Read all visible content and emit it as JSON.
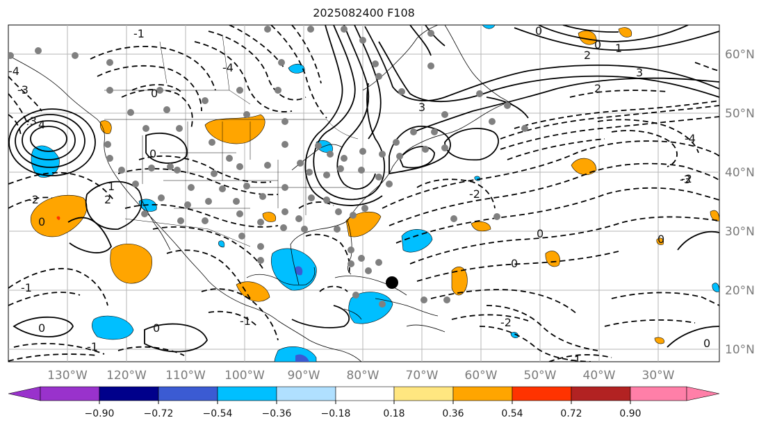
{
  "title": "2025082400 F108",
  "map": {
    "lon_labels": [
      "130°W",
      "120°W",
      "110°W",
      "100°W",
      "90°W",
      "80°W",
      "70°W",
      "60°W",
      "50°W",
      "40°W",
      "30°W"
    ],
    "lat_labels": [
      "60°N",
      "50°N",
      "40°N",
      "30°N",
      "20°N",
      "10°N"
    ],
    "contour_labels": [
      "-1",
      "-1",
      "-2",
      "-3",
      "-4",
      "0",
      "0",
      "0",
      "0",
      "0",
      "0",
      "0",
      "0",
      "1",
      "2",
      "2",
      "3",
      "3",
      "4",
      "-1",
      "-2",
      "-2",
      "-3",
      "-4",
      "1",
      "2",
      "0",
      "-1",
      "-2",
      "-4",
      "-3",
      "-1",
      "0",
      "0"
    ]
  },
  "colorbar": {
    "ticks": [
      "−0.90",
      "−0.72",
      "−0.54",
      "−0.36",
      "−0.18",
      "0.18",
      "0.36",
      "0.54",
      "0.72",
      "0.90"
    ],
    "colors": [
      "#9932cc",
      "#00008b",
      "#3b5bd3",
      "#00bfff",
      "#b0e0ff",
      "#ffffff",
      "#ffe680",
      "#ffa500",
      "#ff3300",
      "#b22222",
      "#ff7fa8"
    ]
  }
}
